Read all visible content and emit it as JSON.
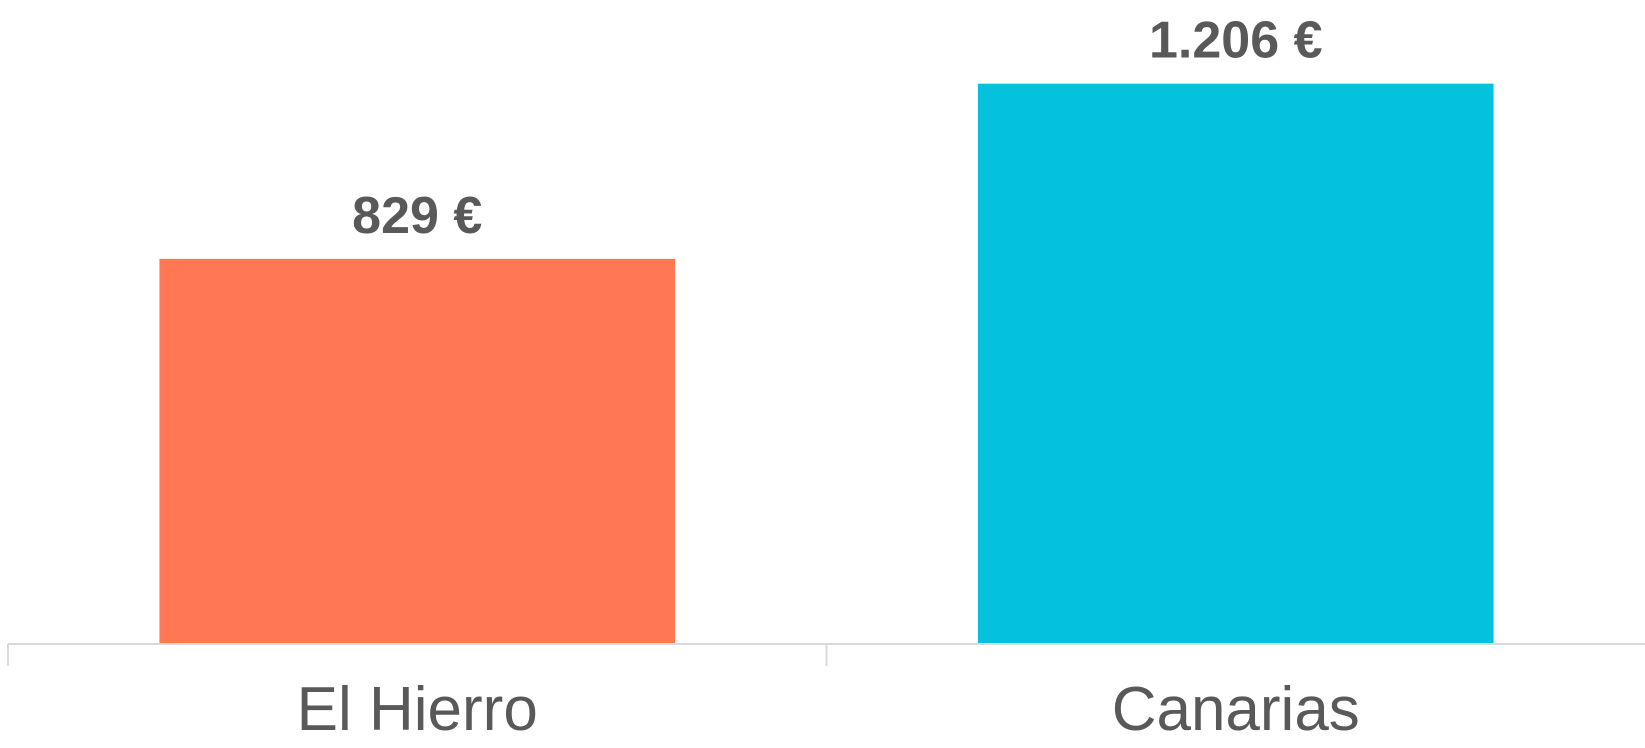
{
  "chart_data": {
    "type": "bar",
    "title": "",
    "xlabel": "",
    "ylabel": "",
    "categories": [
      "El Hierro",
      "Canarias"
    ],
    "values": [
      829,
      1206
    ],
    "value_labels": [
      "829 €",
      "1.206 €"
    ],
    "colors": [
      "#FF7853",
      "#04C2DE"
    ],
    "ylim": [
      0,
      1300
    ],
    "grid": false,
    "legend": "none",
    "axis_color": "#D9D9D9",
    "text_color": "#595959"
  }
}
